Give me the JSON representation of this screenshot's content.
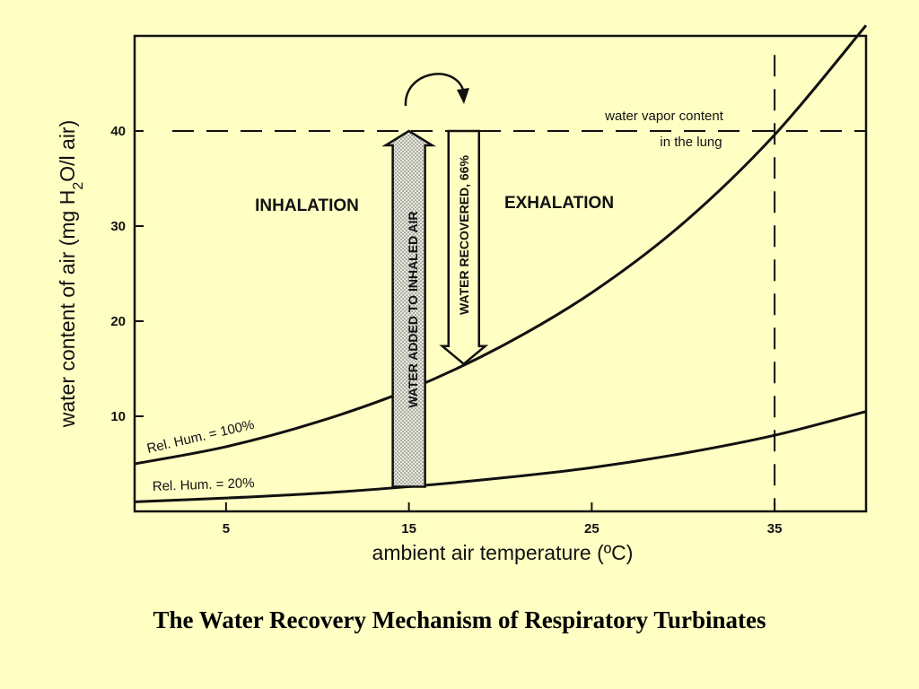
{
  "chart_data": {
    "type": "line",
    "title": "",
    "xlabel": "ambient air temperature  (ºC)",
    "ylabel_main": "water content of air  (mg H",
    "ylabel_sub": "2",
    "ylabel_tail": "O/l air)",
    "xlim": [
      0,
      40
    ],
    "ylim": [
      0,
      50
    ],
    "xticks": [
      5,
      15,
      25,
      35
    ],
    "yticks": [
      10,
      20,
      30,
      40
    ],
    "grid": false,
    "series": [
      {
        "name": "Rel. Hum. = 100%",
        "x": [
          0,
          5,
          10,
          15,
          20,
          25,
          30,
          35,
          40
        ],
        "y": [
          5,
          6.8,
          9.4,
          12.8,
          17.3,
          23.0,
          30.3,
          39.6,
          51.1
        ]
      },
      {
        "name": "Rel. Hum. = 20%",
        "x": [
          0,
          5,
          10,
          15,
          20,
          25,
          30,
          35,
          40
        ],
        "y": [
          1.0,
          1.4,
          1.9,
          2.6,
          3.5,
          4.6,
          6.1,
          8.0,
          10.5
        ]
      }
    ],
    "reference_lines": [
      {
        "orientation": "horizontal",
        "value": 40,
        "label_line1": "water vapor content",
        "label_line2": "in the lung"
      },
      {
        "orientation": "vertical",
        "value": 35
      }
    ],
    "annotations": {
      "inhalation": "INHALATION",
      "exhalation": "EXHALATION",
      "water_added": {
        "label": "WATER ADDED TO INHALED AIR",
        "x": 15,
        "y_from": 2.6,
        "y_to": 40
      },
      "water_recovered": {
        "label": "WATER RECOVERED, 66%",
        "x": 18,
        "y_from": 40,
        "y_to": 15.5
      }
    }
  },
  "caption": "The Water Recovery Mechanism of Respiratory Turbinates"
}
